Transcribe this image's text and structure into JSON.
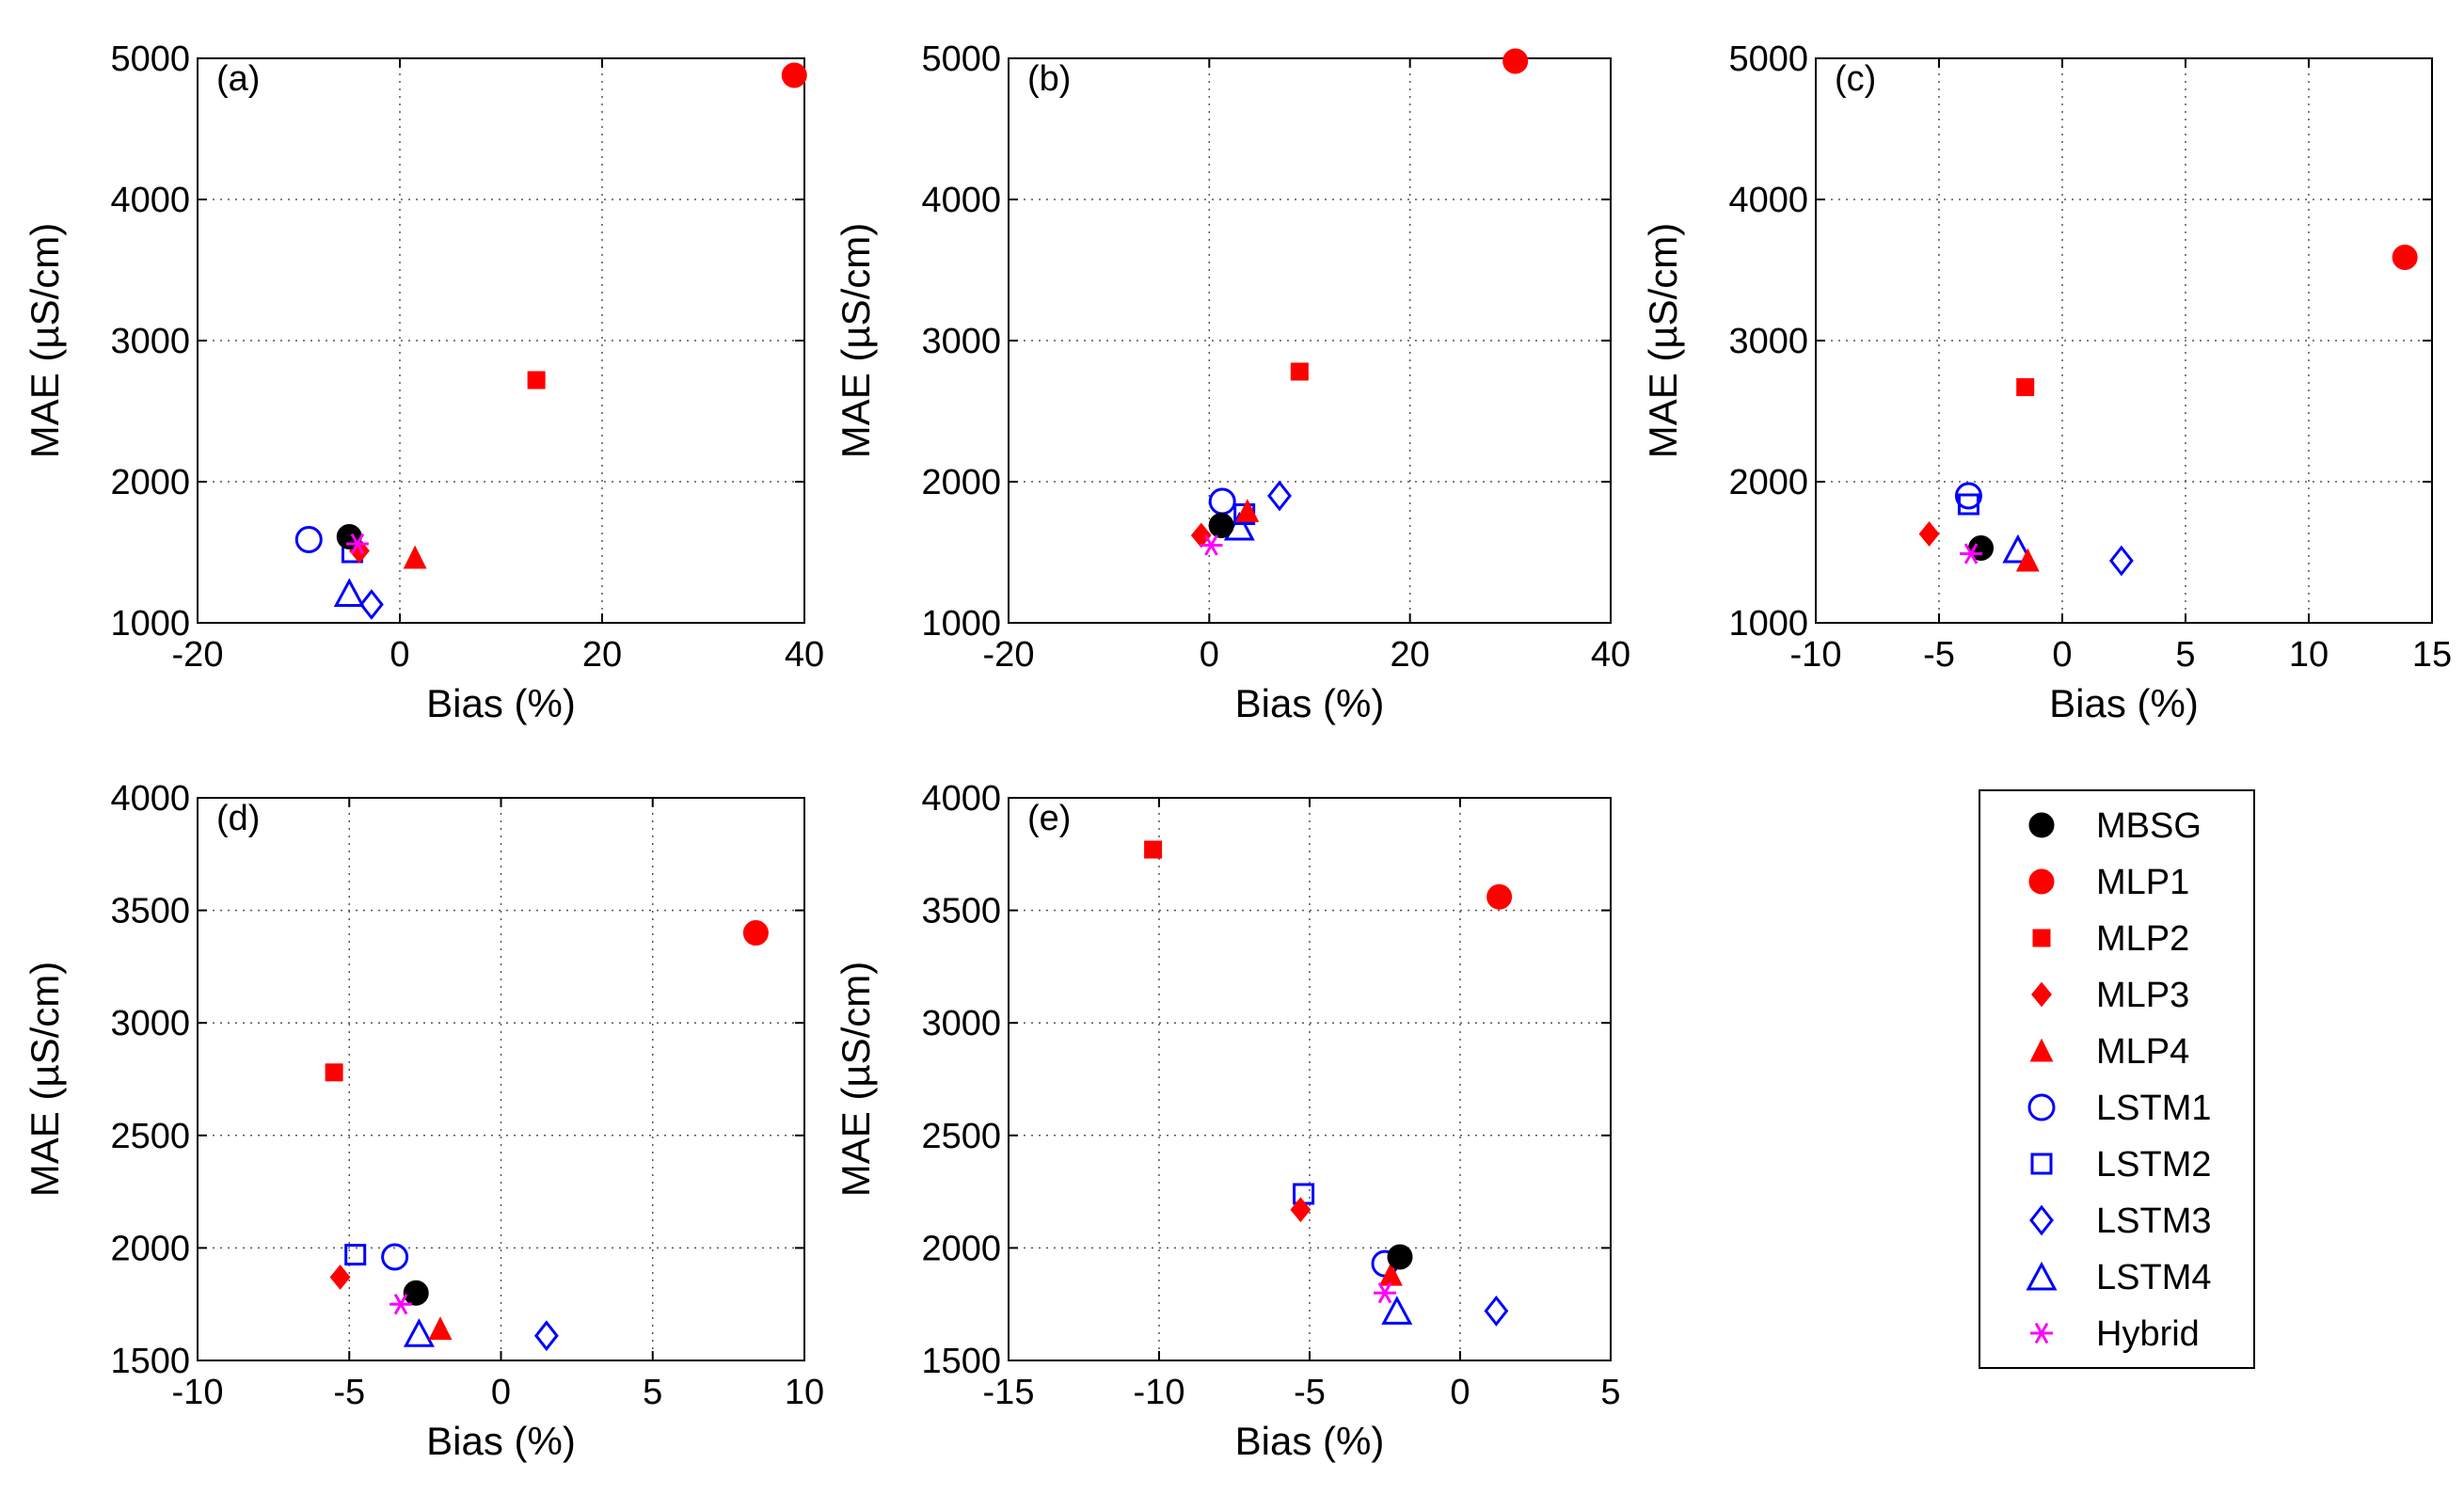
{
  "chart_data": [
    {
      "type": "scatter",
      "panel": "(a)",
      "xlabel": "Bias (%)",
      "ylabel": "MAE (µS/cm)",
      "xlim": [
        -20,
        40
      ],
      "ylim": [
        1000,
        5000
      ],
      "xticks": [
        "-20",
        "0",
        "20",
        "40"
      ],
      "yticks": [
        "1000",
        "2000",
        "3000",
        "4000",
        "5000"
      ],
      "points": [
        {
          "series": "MBSG",
          "x": -5.0,
          "y": 1610
        },
        {
          "series": "MLP1",
          "x": 39.0,
          "y": 4880
        },
        {
          "series": "MLP2",
          "x": 13.5,
          "y": 2720
        },
        {
          "series": "MLP3",
          "x": -4.0,
          "y": 1510
        },
        {
          "series": "MLP4",
          "x": 1.5,
          "y": 1460
        },
        {
          "series": "LSTM1",
          "x": -9.0,
          "y": 1590
        },
        {
          "series": "LSTM2",
          "x": -4.7,
          "y": 1500
        },
        {
          "series": "LSTM3",
          "x": -2.8,
          "y": 1130
        },
        {
          "series": "LSTM4",
          "x": -5.0,
          "y": 1210
        },
        {
          "series": "Hybrid",
          "x": -4.2,
          "y": 1560
        }
      ]
    },
    {
      "type": "scatter",
      "panel": "(b)",
      "xlabel": "Bias (%)",
      "ylabel": "MAE (µS/cm)",
      "xlim": [
        -20,
        40
      ],
      "ylim": [
        1000,
        5000
      ],
      "xticks": [
        "-20",
        "0",
        "20",
        "40"
      ],
      "yticks": [
        "1000",
        "2000",
        "3000",
        "4000",
        "5000"
      ],
      "points": [
        {
          "series": "MBSG",
          "x": 1.2,
          "y": 1690
        },
        {
          "series": "MLP1",
          "x": 30.5,
          "y": 4980
        },
        {
          "series": "MLP2",
          "x": 9.0,
          "y": 2780
        },
        {
          "series": "MLP3",
          "x": -0.8,
          "y": 1620
        },
        {
          "series": "MLP4",
          "x": 3.8,
          "y": 1790
        },
        {
          "series": "LSTM1",
          "x": 1.3,
          "y": 1860
        },
        {
          "series": "LSTM2",
          "x": 3.5,
          "y": 1770
        },
        {
          "series": "LSTM3",
          "x": 7.0,
          "y": 1900
        },
        {
          "series": "LSTM4",
          "x": 3.0,
          "y": 1680
        },
        {
          "series": "Hybrid",
          "x": 0.2,
          "y": 1550
        }
      ]
    },
    {
      "type": "scatter",
      "panel": "(c)",
      "xlabel": "Bias (%)",
      "ylabel": "MAE (µS/cm)",
      "xlim": [
        -10,
        15
      ],
      "ylim": [
        1000,
        5000
      ],
      "xticks": [
        "-10",
        "-5",
        "0",
        "5",
        "10",
        "15"
      ],
      "yticks": [
        "1000",
        "2000",
        "3000",
        "4000",
        "5000"
      ],
      "points": [
        {
          "series": "MBSG",
          "x": -3.3,
          "y": 1530
        },
        {
          "series": "MLP1",
          "x": 13.9,
          "y": 3590
        },
        {
          "series": "MLP2",
          "x": -1.5,
          "y": 2670
        },
        {
          "series": "MLP3",
          "x": -5.4,
          "y": 1630
        },
        {
          "series": "MLP4",
          "x": -1.4,
          "y": 1440
        },
        {
          "series": "LSTM1",
          "x": -3.8,
          "y": 1900
        },
        {
          "series": "LSTM2",
          "x": -3.8,
          "y": 1840
        },
        {
          "series": "LSTM3",
          "x": 2.4,
          "y": 1440
        },
        {
          "series": "LSTM4",
          "x": -1.8,
          "y": 1520
        },
        {
          "series": "Hybrid",
          "x": -3.7,
          "y": 1490
        }
      ]
    },
    {
      "type": "scatter",
      "panel": "(d)",
      "xlabel": "Bias (%)",
      "ylabel": "MAE (µS/cm)",
      "xlim": [
        -10,
        10
      ],
      "ylim": [
        1500,
        4000
      ],
      "xticks": [
        "-10",
        "-5",
        "0",
        "5",
        "10"
      ],
      "yticks": [
        "1500",
        "2000",
        "2500",
        "3000",
        "3500",
        "4000"
      ],
      "points": [
        {
          "series": "MBSG",
          "x": -2.8,
          "y": 1800
        },
        {
          "series": "MLP1",
          "x": 8.4,
          "y": 3400
        },
        {
          "series": "MLP2",
          "x": -5.5,
          "y": 2780
        },
        {
          "series": "MLP3",
          "x": -5.3,
          "y": 1870
        },
        {
          "series": "MLP4",
          "x": -2.0,
          "y": 1640
        },
        {
          "series": "LSTM1",
          "x": -3.5,
          "y": 1960
        },
        {
          "series": "LSTM2",
          "x": -4.8,
          "y": 1970
        },
        {
          "series": "LSTM3",
          "x": 1.5,
          "y": 1610
        },
        {
          "series": "LSTM4",
          "x": -2.7,
          "y": 1620
        },
        {
          "series": "Hybrid",
          "x": -3.3,
          "y": 1750
        }
      ]
    },
    {
      "type": "scatter",
      "panel": "(e)",
      "xlabel": "Bias (%)",
      "ylabel": "MAE (µS/cm)",
      "xlim": [
        -15,
        5
      ],
      "ylim": [
        1500,
        4000
      ],
      "xticks": [
        "-15",
        "-10",
        "-5",
        "0",
        "5"
      ],
      "yticks": [
        "1500",
        "2000",
        "2500",
        "3000",
        "3500",
        "4000"
      ],
      "points": [
        {
          "series": "MBSG",
          "x": -2.0,
          "y": 1960
        },
        {
          "series": "MLP1",
          "x": 1.3,
          "y": 3560
        },
        {
          "series": "MLP2",
          "x": -10.2,
          "y": 3770
        },
        {
          "series": "MLP3",
          "x": -5.3,
          "y": 2170
        },
        {
          "series": "MLP4",
          "x": -2.3,
          "y": 1880
        },
        {
          "series": "LSTM1",
          "x": -2.5,
          "y": 1930
        },
        {
          "series": "LSTM2",
          "x": -5.2,
          "y": 2240
        },
        {
          "series": "LSTM3",
          "x": 1.2,
          "y": 1720
        },
        {
          "series": "LSTM4",
          "x": -2.1,
          "y": 1720
        },
        {
          "series": "Hybrid",
          "x": -2.5,
          "y": 1800
        }
      ]
    }
  ],
  "legend": {
    "placement": "bottom-right",
    "items": [
      {
        "name": "MBSG",
        "marker": "circle",
        "filled": true,
        "color": "#000000"
      },
      {
        "name": "MLP1",
        "marker": "circle",
        "filled": true,
        "color": "#ff0000"
      },
      {
        "name": "MLP2",
        "marker": "square",
        "filled": true,
        "color": "#ff0000"
      },
      {
        "name": "MLP3",
        "marker": "diamond",
        "filled": true,
        "color": "#ff0000"
      },
      {
        "name": "MLP4",
        "marker": "triangle",
        "filled": true,
        "color": "#ff0000"
      },
      {
        "name": "LSTM1",
        "marker": "circle",
        "filled": false,
        "color": "#0000ff"
      },
      {
        "name": "LSTM2",
        "marker": "square",
        "filled": false,
        "color": "#0000ff"
      },
      {
        "name": "LSTM3",
        "marker": "diamond",
        "filled": false,
        "color": "#0000ff"
      },
      {
        "name": "LSTM4",
        "marker": "triangle",
        "filled": false,
        "color": "#0000ff"
      },
      {
        "name": "Hybrid",
        "marker": "asterisk",
        "filled": false,
        "color": "#ff00ff"
      }
    ]
  }
}
